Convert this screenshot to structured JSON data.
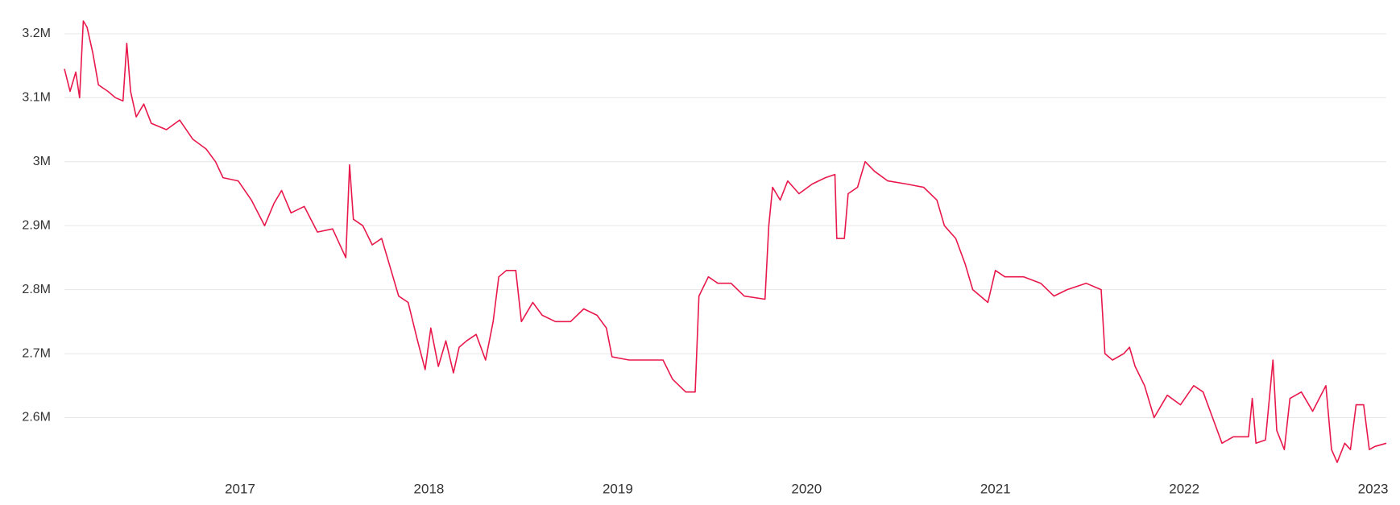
{
  "chart_data": {
    "type": "line",
    "x": [
      2016.07,
      2016.1,
      2016.13,
      2016.15,
      2016.17,
      2016.19,
      2016.22,
      2016.25,
      2016.3,
      2016.34,
      2016.38,
      2016.4,
      2016.42,
      2016.45,
      2016.49,
      2016.53,
      2016.61,
      2016.68,
      2016.75,
      2016.82,
      2016.87,
      2016.91,
      2016.99,
      2017.06,
      2017.13,
      2017.18,
      2017.22,
      2017.27,
      2017.34,
      2017.41,
      2017.49,
      2017.56,
      2017.58,
      2017.6,
      2017.65,
      2017.7,
      2017.75,
      2017.79,
      2017.84,
      2017.89,
      2017.94,
      2017.98,
      2018.01,
      2018.05,
      2018.09,
      2018.13,
      2018.16,
      2018.2,
      2018.25,
      2018.3,
      2018.34,
      2018.37,
      2018.41,
      2018.46,
      2018.49,
      2018.55,
      2018.6,
      2018.67,
      2018.75,
      2018.82,
      2018.89,
      2018.94,
      2018.97,
      2019.06,
      2019.15,
      2019.24,
      2019.29,
      2019.36,
      2019.41,
      2019.43,
      2019.48,
      2019.53,
      2019.6,
      2019.67,
      2019.78,
      2019.8,
      2019.82,
      2019.86,
      2019.9,
      2019.96,
      2020.03,
      2020.1,
      2020.15,
      2020.16,
      2020.2,
      2020.22,
      2020.27,
      2020.31,
      2020.36,
      2020.43,
      2020.53,
      2020.62,
      2020.69,
      2020.73,
      2020.79,
      2020.84,
      2020.88,
      2020.96,
      2021.0,
      2021.05,
      2021.15,
      2021.24,
      2021.31,
      2021.38,
      2021.48,
      2021.56,
      2021.58,
      2021.62,
      2021.68,
      2021.71,
      2021.74,
      2021.79,
      2021.84,
      2021.91,
      2021.98,
      2022.05,
      2022.1,
      2022.15,
      2022.2,
      2022.26,
      2022.34,
      2022.36,
      2022.38,
      2022.43,
      2022.47,
      2022.49,
      2022.53,
      2022.56,
      2022.62,
      2022.68,
      2022.75,
      2022.78,
      2022.81,
      2022.85,
      2022.88,
      2022.91,
      2022.95,
      2022.98,
      2023.01,
      2023.07
    ],
    "series": [
      {
        "color": "#e8184b",
        "values": [
          3145000,
          3110000,
          3140000,
          3100000,
          3220000,
          3210000,
          3170000,
          3120000,
          3110000,
          3100000,
          3095000,
          3185000,
          3110000,
          3070000,
          3090000,
          3060000,
          3050000,
          3065000,
          3035000,
          3020000,
          3000000,
          2975000,
          2970000,
          2940000,
          2900000,
          2935000,
          2955000,
          2920000,
          2930000,
          2890000,
          2895000,
          2850000,
          2995000,
          2910000,
          2900000,
          2870000,
          2880000,
          2840000,
          2790000,
          2780000,
          2720000,
          2675000,
          2740000,
          2680000,
          2720000,
          2670000,
          2710000,
          2720000,
          2730000,
          2690000,
          2750000,
          2820000,
          2830000,
          2830000,
          2750000,
          2780000,
          2760000,
          2750000,
          2750000,
          2770000,
          2760000,
          2740000,
          2695000,
          2690000,
          2690000,
          2690000,
          2660000,
          2640000,
          2640000,
          2790000,
          2820000,
          2810000,
          2810000,
          2790000,
          2785000,
          2900000,
          2960000,
          2940000,
          2970000,
          2950000,
          2965000,
          2975000,
          2980000,
          2880000,
          2880000,
          2950000,
          2960000,
          3000000,
          2985000,
          2970000,
          2965000,
          2960000,
          2940000,
          2900000,
          2880000,
          2840000,
          2800000,
          2780000,
          2830000,
          2820000,
          2820000,
          2810000,
          2790000,
          2800000,
          2810000,
          2800000,
          2700000,
          2690000,
          2700000,
          2710000,
          2680000,
          2650000,
          2600000,
          2635000,
          2620000,
          2650000,
          2640000,
          2600000,
          2560000,
          2570000,
          2570000,
          2630000,
          2560000,
          2565000,
          2690000,
          2580000,
          2550000,
          2630000,
          2640000,
          2610000,
          2650000,
          2550000,
          2530000,
          2560000,
          2550000,
          2620000,
          2620000,
          2550000,
          2555000,
          2560000
        ]
      }
    ],
    "xlim": [
      2016.07,
      2023.07
    ],
    "xticks": [
      2017,
      2018,
      2019,
      2020,
      2021,
      2022,
      2023
    ],
    "ylim": [
      2510000,
      3225000
    ],
    "yticks": [
      {
        "value": 2600000,
        "label": "2.6M"
      },
      {
        "value": 2700000,
        "label": "2.7M"
      },
      {
        "value": 2800000,
        "label": "2.8M"
      },
      {
        "value": 2900000,
        "label": "2.9M"
      },
      {
        "value": 3000000,
        "label": "3M"
      },
      {
        "value": 3100000,
        "label": "3.1M"
      },
      {
        "value": 3200000,
        "label": "3.2M"
      }
    ],
    "grid": true
  }
}
